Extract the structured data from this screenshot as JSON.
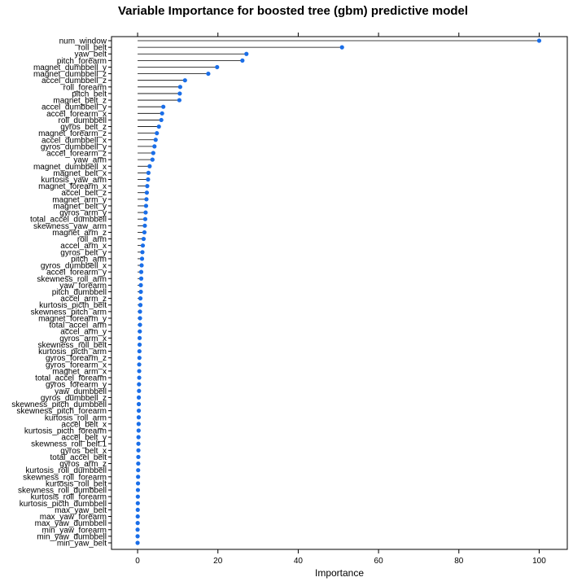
{
  "chart_data": {
    "type": "dot",
    "title": "Variable Importance for boosted tree (gbm) predictive model",
    "xlabel": "Importance",
    "xlim": [
      -6.5,
      107
    ],
    "xticks": [
      0,
      20,
      40,
      60,
      80,
      100
    ],
    "grid": false,
    "point_color": "#1a6ee8",
    "categories": [
      "num_window",
      "roll_belt",
      "yaw_belt",
      "pitch_forearm",
      "magnet_dumbbell_y",
      "magnet_dumbbell_z",
      "accel_dumbbell_z",
      "roll_forearm",
      "pitch_belt",
      "magnet_belt_z",
      "accel_dumbbell_y",
      "accel_forearm_x",
      "roll_dumbbell",
      "gyros_belt_z",
      "magnet_forearm_z",
      "accel_dumbbell_x",
      "gyros_dumbbell_y",
      "accel_forearm_z",
      "yaw_arm",
      "magnet_dumbbell_x",
      "magnet_belt_x",
      "kurtosis_yaw_arm",
      "magnet_forearm_x",
      "accel_belt_z",
      "magnet_arm_y",
      "magnet_belt_y",
      "gyros_arm_y",
      "total_accel_dumbbell",
      "skewness_yaw_arm",
      "magnet_arm_z",
      "roll_arm",
      "accel_arm_x",
      "gyros_belt_y",
      "pitch_arm",
      "gyros_dumbbell_x",
      "accel_forearm_y",
      "skewness_roll_arm",
      "yaw_forearm",
      "pitch_dumbbell",
      "accel_arm_z",
      "kurtosis_picth_belt",
      "skewness_pitch_arm",
      "magnet_forearm_y",
      "total_accel_arm",
      "accel_arm_y",
      "gyros_arm_x",
      "skewness_roll_belt",
      "kurtosis_picth_arm",
      "gyros_forearm_z",
      "gyros_forearm_x",
      "magnet_arm_x",
      "total_accel_forearm",
      "gyros_forearm_y",
      "yaw_dumbbell",
      "gyros_dumbbell_z",
      "skewness_pitch_dumbbell",
      "skewness_pitch_forearm",
      "kurtosis_roll_arm",
      "accel_belt_x",
      "kurtosis_picth_forearm",
      "accel_belt_y",
      "skewness_roll_belt.1",
      "gyros_belt_x",
      "total_accel_belt",
      "gyros_arm_z",
      "kurtosis_roll_dumbbell",
      "skewness_roll_forearm",
      "kurtosis_roll_belt",
      "skewness_roll_dumbbell",
      "kurtosis_roll_forearm",
      "kurtosis_picth_dumbbell",
      "max_yaw_belt",
      "max_yaw_forearm",
      "max_yaw_dumbbell",
      "min_yaw_forearm",
      "min_yaw_dumbbell",
      "min_yaw_belt"
    ],
    "values": [
      100,
      50.9,
      27.1,
      26.1,
      19.8,
      17.6,
      11.8,
      10.6,
      10.5,
      10.4,
      6.4,
      6.1,
      5.9,
      5.3,
      4.8,
      4.5,
      4.2,
      3.9,
      3.7,
      3.0,
      2.7,
      2.6,
      2.4,
      2.3,
      2.2,
      2.1,
      2.0,
      1.9,
      1.8,
      1.7,
      1.5,
      1.3,
      1.2,
      1.1,
      1.0,
      0.9,
      0.9,
      0.8,
      0.8,
      0.7,
      0.7,
      0.6,
      0.6,
      0.6,
      0.55,
      0.5,
      0.5,
      0.45,
      0.45,
      0.4,
      0.4,
      0.4,
      0.35,
      0.35,
      0.3,
      0.3,
      0.3,
      0.28,
      0.26,
      0.25,
      0.22,
      0.2,
      0.2,
      0.18,
      0.16,
      0.14,
      0.12,
      0.1,
      0.08,
      0.06,
      0.05,
      0.04,
      0.03,
      0.02,
      0,
      0,
      0
    ]
  }
}
